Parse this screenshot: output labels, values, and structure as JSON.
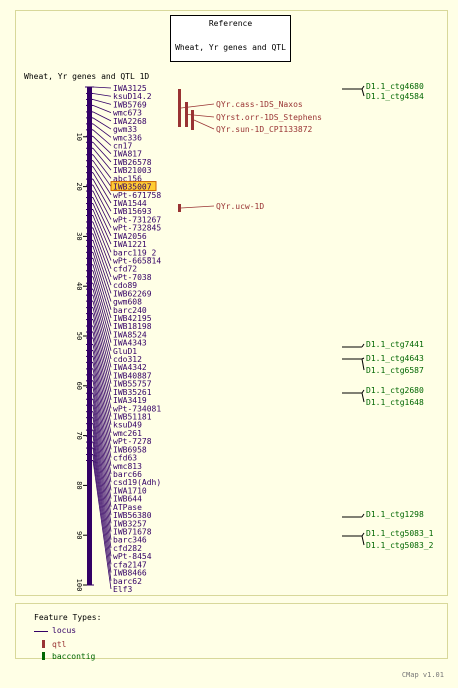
{
  "reference": {
    "title": "Reference",
    "map_name": "Wheat, Yr genes and QTL"
  },
  "map_title": "Wheat, Yr genes and QTL 1D",
  "ticks": [
    "10",
    "20",
    "30",
    "40",
    "50",
    "60",
    "70",
    "80",
    "90",
    "100"
  ],
  "loci": [
    {
      "name": "IWA3125",
      "pos": 0.0
    },
    {
      "name": "ksuD14.2",
      "pos": 1.3
    },
    {
      "name": "IWB5769",
      "pos": 2.5
    },
    {
      "name": "wmc673",
      "pos": 3.7
    },
    {
      "name": "IWA2268",
      "pos": 5.0
    },
    {
      "name": "gwm33",
      "pos": 6.2
    },
    {
      "name": "wmc336",
      "pos": 7.4
    },
    {
      "name": "cn17",
      "pos": 8.6
    },
    {
      "name": "IWA817",
      "pos": 9.9
    },
    {
      "name": "IWB26578",
      "pos": 11.1
    },
    {
      "name": "IWB21003",
      "pos": 12.3
    },
    {
      "name": "abc156",
      "pos": 13.6
    },
    {
      "name": "IWB35007",
      "pos": 14.8,
      "highlight": true
    },
    {
      "name": "wPt-671758",
      "pos": 16.0
    },
    {
      "name": "IWA1544",
      "pos": 17.2
    },
    {
      "name": "IWB15693",
      "pos": 18.5
    },
    {
      "name": "wPt-731267",
      "pos": 19.7
    },
    {
      "name": "wPt-732845",
      "pos": 20.9
    },
    {
      "name": "IWA2056",
      "pos": 22.2
    },
    {
      "name": "IWA1221",
      "pos": 23.4
    },
    {
      "name": "barc119_2",
      "pos": 24.6
    },
    {
      "name": "wPt-665814",
      "pos": 25.8
    },
    {
      "name": "cfd72",
      "pos": 27.1
    },
    {
      "name": "wPt-7038",
      "pos": 28.3
    },
    {
      "name": "cdo89",
      "pos": 29.5
    },
    {
      "name": "IWB62269",
      "pos": 30.8
    },
    {
      "name": "gwm608",
      "pos": 32.0
    },
    {
      "name": "barc240",
      "pos": 33.2
    },
    {
      "name": "IWB42195",
      "pos": 34.4
    },
    {
      "name": "IWB18198",
      "pos": 35.7
    },
    {
      "name": "IWA8524",
      "pos": 36.9
    },
    {
      "name": "IWA4343",
      "pos": 38.1
    },
    {
      "name": "GluD1",
      "pos": 39.4
    },
    {
      "name": "cdo312",
      "pos": 40.6
    },
    {
      "name": "IWA4342",
      "pos": 41.8
    },
    {
      "name": "IWB40887",
      "pos": 43.0
    },
    {
      "name": "IWB55757",
      "pos": 44.3
    },
    {
      "name": "IWB35261",
      "pos": 45.5
    },
    {
      "name": "IWA3419",
      "pos": 46.7
    },
    {
      "name": "wPt-734081",
      "pos": 48.0
    },
    {
      "name": "IWB51181",
      "pos": 49.2
    },
    {
      "name": "ksuD49",
      "pos": 50.4
    },
    {
      "name": "wmc261",
      "pos": 51.7
    },
    {
      "name": "wPt-7278",
      "pos": 52.9
    },
    {
      "name": "IWB6958",
      "pos": 54.1
    },
    {
      "name": "cfd63",
      "pos": 55.3
    },
    {
      "name": "wmc813",
      "pos": 56.6
    },
    {
      "name": "barc66",
      "pos": 57.8
    },
    {
      "name": "csd19(Adh)",
      "pos": 59.0
    },
    {
      "name": "IWA1710",
      "pos": 60.3
    },
    {
      "name": "IWB644",
      "pos": 61.5
    },
    {
      "name": "ATPase",
      "pos": 62.7
    },
    {
      "name": "IWB56380",
      "pos": 63.9
    },
    {
      "name": "IWB3257",
      "pos": 65.2
    },
    {
      "name": "IWB71678",
      "pos": 66.4
    },
    {
      "name": "barc346",
      "pos": 67.6
    },
    {
      "name": "cfd282",
      "pos": 68.9
    },
    {
      "name": "wPt-8454",
      "pos": 70.1
    },
    {
      "name": "cfa2147",
      "pos": 71.3
    },
    {
      "name": "IWB8466",
      "pos": 72.5
    },
    {
      "name": "barc62",
      "pos": 73.8
    },
    {
      "name": "Elf3",
      "pos": 75.0
    }
  ],
  "qtls": [
    {
      "name": "QYr.cass-1DS_Naxos",
      "start": 0,
      "end": 10
    },
    {
      "name": "QYrst.orr-1DS_Stephens",
      "start": 3,
      "end": 10
    },
    {
      "name": "QYr.sun-1D_CPI133872",
      "start": 5,
      "end": 12
    },
    {
      "name": "QYr.ucw-1D",
      "start": 21,
      "end": 23
    }
  ],
  "contigs": [
    "D1.1_ctg4680",
    "D1.1_ctg4584",
    "D1.1_ctg7441",
    "D1.1_ctg4643",
    "D1.1_ctg6587",
    "D1.1_ctg2680",
    "D1.1_ctg1648",
    "D1.1_ctg1298",
    "D1.1_ctg5083_1",
    "D1.1_ctg5083_2"
  ],
  "legend": {
    "title": "Feature Types:",
    "items": [
      {
        "label": "locus",
        "color": "#330066"
      },
      {
        "label": "qtl",
        "color": "#993333"
      },
      {
        "label": "baccontig",
        "color": "#006600"
      }
    ]
  },
  "credit": "CMap v1.01",
  "colors": {
    "locus": "#330066",
    "qtl": "#993333",
    "contig": "#006600",
    "highlight_bg": "#ffcc33",
    "highlight_border": "#cc6600"
  }
}
